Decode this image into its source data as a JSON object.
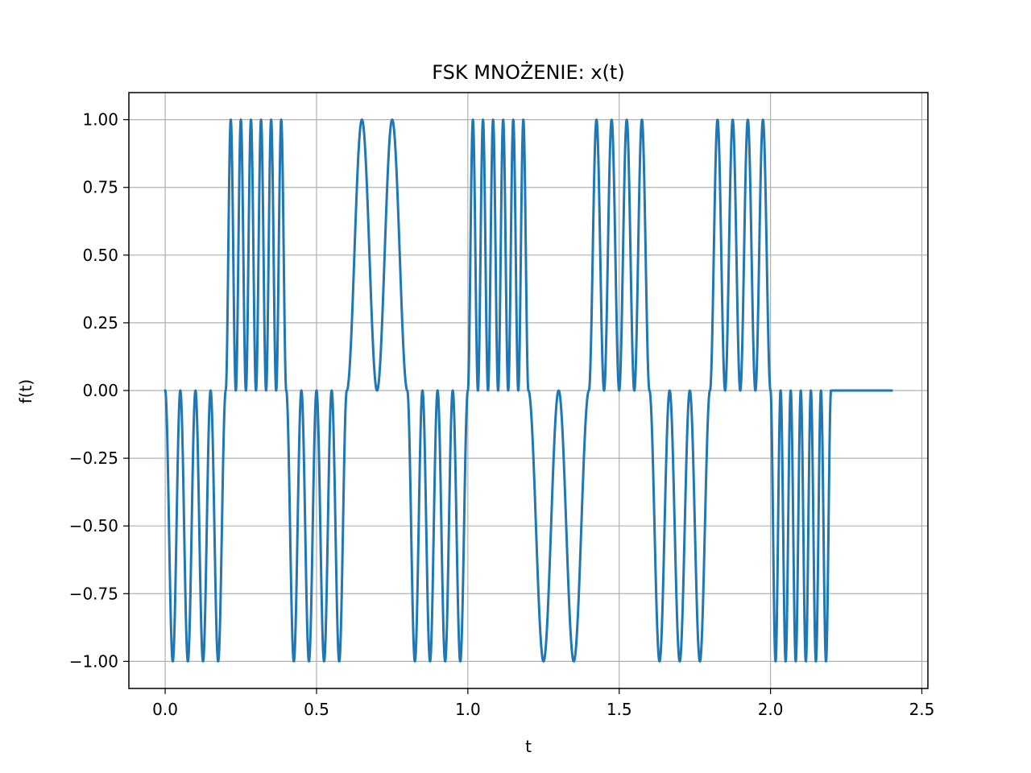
{
  "chart_data": {
    "type": "line",
    "title": "FSK MNOŻENIE: x(t)",
    "xlabel": "t",
    "ylabel": "f(t)",
    "xlim": [
      -0.12,
      2.52
    ],
    "ylim": [
      -1.1,
      1.1
    ],
    "grid": true,
    "legend": "none",
    "x_ticks": [
      0.0,
      0.5,
      1.0,
      1.5,
      2.0,
      2.5
    ],
    "x_tick_labels": [
      "0.0",
      "0.5",
      "1.0",
      "1.5",
      "2.0",
      "2.5"
    ],
    "y_ticks": [
      1.0,
      0.75,
      0.5,
      0.25,
      0.0,
      -0.25,
      -0.5,
      -0.75,
      -1.0
    ],
    "y_tick_labels": [
      "1.00",
      "0.75",
      "0.50",
      "0.25",
      "0.00",
      "−0.25",
      "−0.50",
      "−0.75",
      "−1.00"
    ],
    "signal": {
      "bit_duration": 0.2,
      "bits": [
        0,
        1,
        0,
        1,
        0,
        1,
        0,
        1,
        0,
        1,
        0,
        1
      ],
      "bit_frequencies": [
        4,
        6,
        4,
        2,
        4,
        6,
        2,
        4,
        3,
        4,
        6,
        0
      ],
      "t_start": 0.0,
      "t_end": 2.4,
      "envelope": "sin(pi*t/0.2)^2 per bit, sign -1 for bit 0, +1 for bit 1"
    },
    "series": [
      {
        "color": "#1f77b4"
      }
    ]
  }
}
